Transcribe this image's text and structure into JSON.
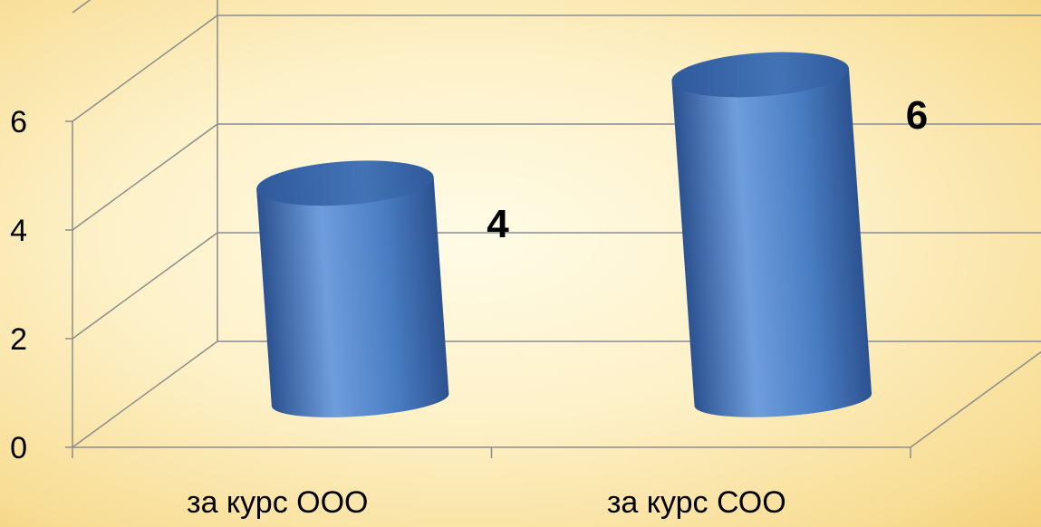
{
  "chart_data": {
    "type": "bar",
    "style": "3d-cylinder",
    "categories": [
      "за курс ООО",
      "за курс СОО"
    ],
    "values": [
      4,
      6
    ],
    "data_labels": [
      "4",
      "6"
    ],
    "y_ticks": [
      "0",
      "2",
      "4",
      "6"
    ],
    "ylim": [
      0,
      8
    ],
    "grid": true,
    "legend": "none",
    "title": "",
    "xlabel": "",
    "ylabel": "",
    "colors": {
      "bar_light": "#6f9ddc",
      "bar_mid": "#4a7ec4",
      "bar_dark": "#2c5290",
      "bar_top": "#3f6fb1",
      "gridline": "#8c8c8c"
    }
  }
}
